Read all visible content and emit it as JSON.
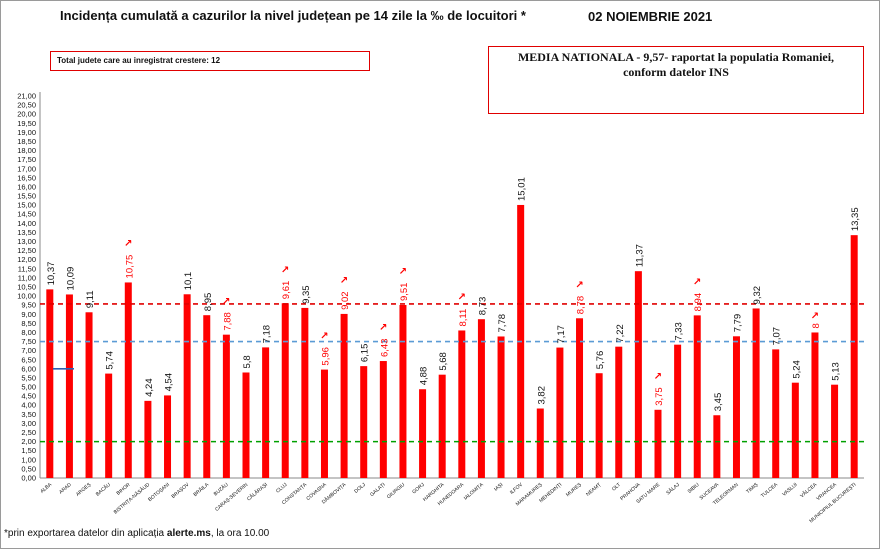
{
  "header": {
    "title": "Incidența cumulată a cazurilor la nivel județean pe 14 zile la ‰ de locuitori *",
    "date": "02 NOIEMBRIE 2021"
  },
  "boxes": {
    "increase_count": "Total judete care au inregistrat crestere: 12",
    "national_line1": "MEDIA NATIONALA - 9,57-  raportat la populatia Romaniei,",
    "national_line2": "conform datelor INS"
  },
  "footnote": {
    "prefix": "*prin exportarea datelor din aplicația ",
    "bold": "alerte.ms",
    "suffix": ", la ora 10.00"
  },
  "chart_data": {
    "type": "bar",
    "categories": [
      "ALBA",
      "ARAD",
      "ARGEȘ",
      "BACĂU",
      "BIHOR",
      "BISTRIȚA-NĂSĂUD",
      "BOTOȘANI",
      "BRAȘOV",
      "BRĂILA",
      "BUZĂU",
      "CARAȘ-SEVERIN",
      "CĂLĂRAȘI",
      "CLUJ",
      "CONSTANȚA",
      "COVASNA",
      "DÂMBOVIȚA",
      "DOLJ",
      "GALAȚI",
      "GIURGIU",
      "GORJ",
      "HARGHITA",
      "HUNEDOARA",
      "IALOMIȚA",
      "IAȘI",
      "ILFOV",
      "MARAMUREȘ",
      "MEHEDINȚI",
      "MUREȘ",
      "NEAMȚ",
      "OLT",
      "PRAHOVA",
      "SATU MARE",
      "SĂLAJ",
      "SIBIU",
      "SUCEAVA",
      "TELEORMAN",
      "TIMIȘ",
      "TULCEA",
      "VASLUI",
      "VÂLCEA",
      "VRANCEA",
      "MUNICIPIUL BUCUREȘTI"
    ],
    "values": [
      10.37,
      10.09,
      9.11,
      5.74,
      10.75,
      4.24,
      4.54,
      10.1,
      8.95,
      7.88,
      5.8,
      7.18,
      9.61,
      9.35,
      5.96,
      9.02,
      6.15,
      6.43,
      9.51,
      4.88,
      5.68,
      8.11,
      8.73,
      7.78,
      15.01,
      3.82,
      7.17,
      8.78,
      5.76,
      7.22,
      11.37,
      3.75,
      7.33,
      8.94,
      3.45,
      7.79,
      9.32,
      7.07,
      5.24,
      8,
      5.13,
      13.35
    ],
    "labels": [
      "10,37",
      "10,09",
      "9,11",
      "5,74",
      "10,75",
      "4,24",
      "4,54",
      "10,1",
      "8,95",
      "7,88",
      "5,8",
      "7,18",
      "9,61",
      "9,35",
      "5,96",
      "9,02",
      "6,15",
      "6,43",
      "9,51",
      "4,88",
      "5,68",
      "8,11",
      "8,73",
      "7,78",
      "15,01",
      "3,82",
      "7,17",
      "8,78",
      "5,76",
      "7,22",
      "11,37",
      "3,75",
      "7,33",
      "8,94",
      "3,45",
      "7,79",
      "9,32",
      "7,07",
      "5,24",
      "8",
      "5,13",
      "13,35"
    ],
    "increased": [
      false,
      false,
      false,
      false,
      true,
      false,
      false,
      false,
      false,
      true,
      false,
      false,
      true,
      false,
      true,
      true,
      false,
      true,
      true,
      false,
      false,
      true,
      false,
      false,
      false,
      false,
      false,
      true,
      false,
      false,
      false,
      true,
      false,
      true,
      false,
      false,
      false,
      false,
      false,
      true,
      false,
      false
    ],
    "ylim": [
      0,
      21
    ],
    "ytick_step": 0.5,
    "ytick_labels": [
      "0,00",
      "0,50",
      "1,00",
      "1,50",
      "2,00",
      "2,50",
      "3,00",
      "3,50",
      "4,00",
      "4,50",
      "5,00",
      "5,50",
      "6,00",
      "6,50",
      "7,00",
      "7,50",
      "8,00",
      "8,50",
      "9,00",
      "9,50",
      "10,00",
      "10,50",
      "11,00",
      "11,50",
      "12,00",
      "12,50",
      "13,00",
      "13,50",
      "14,00",
      "14,50",
      "15,00",
      "15,50",
      "16,00",
      "16,50",
      "17,00",
      "17,50",
      "18,00",
      "18,50",
      "19,00",
      "19,50",
      "20,00",
      "20,50",
      "21,00"
    ],
    "reference_lines": [
      {
        "value": 9.57,
        "color": "#e00000"
      },
      {
        "value": 7.5,
        "color": "#5b9bd5"
      },
      {
        "value": 2,
        "color": "#00a000"
      }
    ],
    "bar_color": "#ff0000",
    "highlight_label_color": "#ff0000",
    "label_color": "#111111",
    "arrow_symbol": "↗",
    "grid": false
  }
}
